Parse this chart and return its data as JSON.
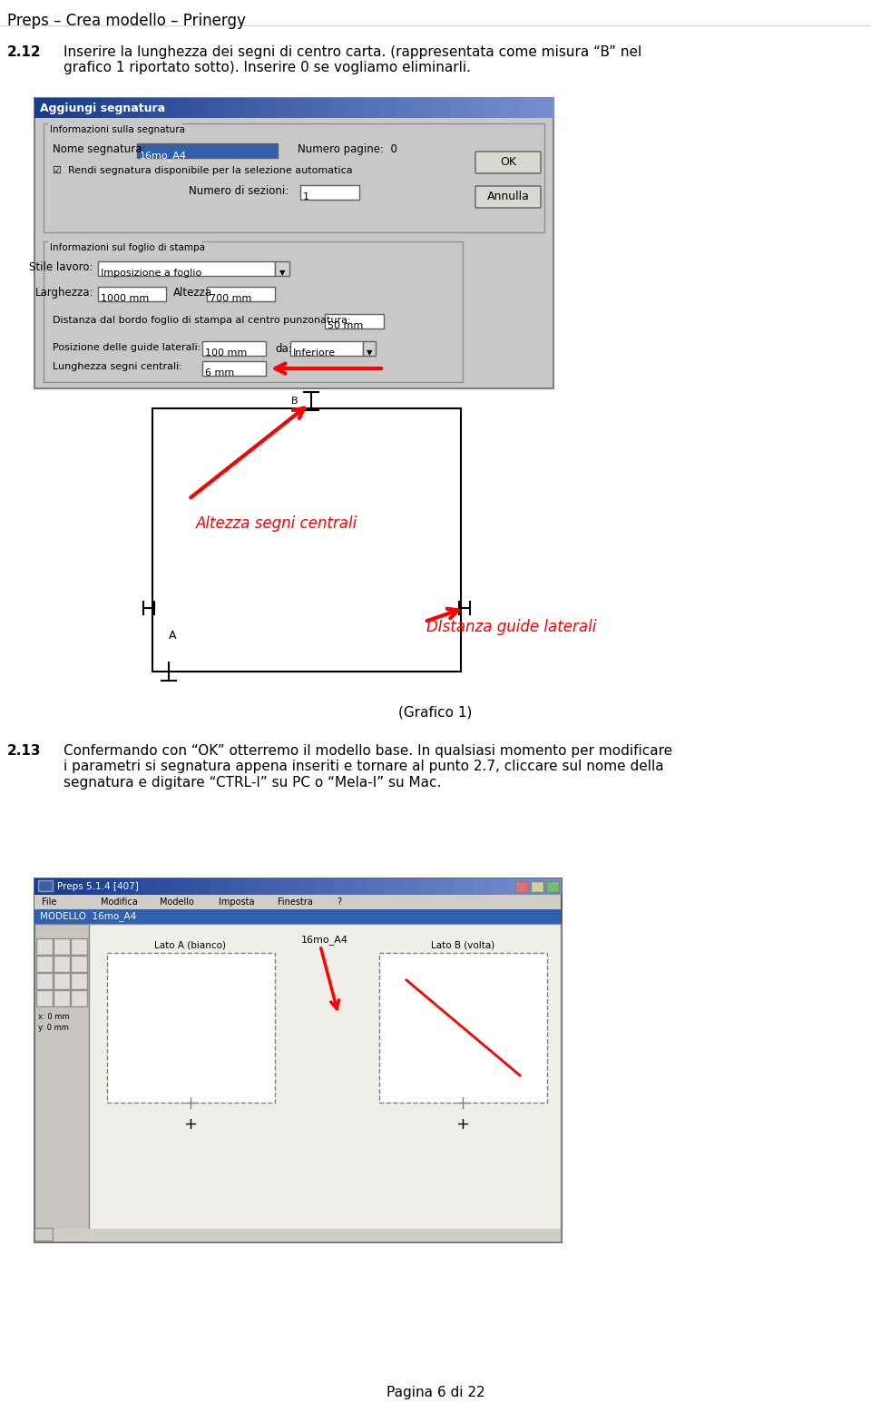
{
  "title": "Preps – Crea modello – Prinergy",
  "page_footer": "Pagina 6 di 22",
  "bg_color": "#ffffff",
  "section_212_num": "2.12",
  "section_212_text": "Inserire la lunghezza dei segni di centro carta. (rappresentata come misura “B” nel\ngrafico 1 riportato sotto). Inserire 0 se vogliamo eliminarli.",
  "section_213_num": "2.13",
  "section_213_text": "Confermando con “OK” otterremo il modello base. In qualsiasi momento per modificare\ni parametri si segnatura appena inseriti e tornare al punto 2.7, cliccare sul nome della\nsegnatura e digitare “CTRL-I” su PC o “Mela-I” su Mac.",
  "grafico_caption": "(Grafico 1)",
  "dialog_title": "Aggiungi segnatura",
  "dialog_bg": "#c0c0c0",
  "dialog_header_bg1": "#3060b0",
  "dialog_header_bg2": "#90b0e0",
  "dialog_header_text_color": "#ffffff",
  "grafico1_altezza": "Altezza segni centrali",
  "grafico1_distanza": "DIstanza guide laterali",
  "screenshot_title": "16mo_A4",
  "screenshot_labels": [
    "Lato A (bianco)",
    "Lato B (volta)"
  ],
  "ss_menu": [
    "File",
    "Modifica",
    "Modello",
    "Imposta",
    "Finestra",
    "?"
  ],
  "ss_tab": "MODELLO  16mo_A4"
}
